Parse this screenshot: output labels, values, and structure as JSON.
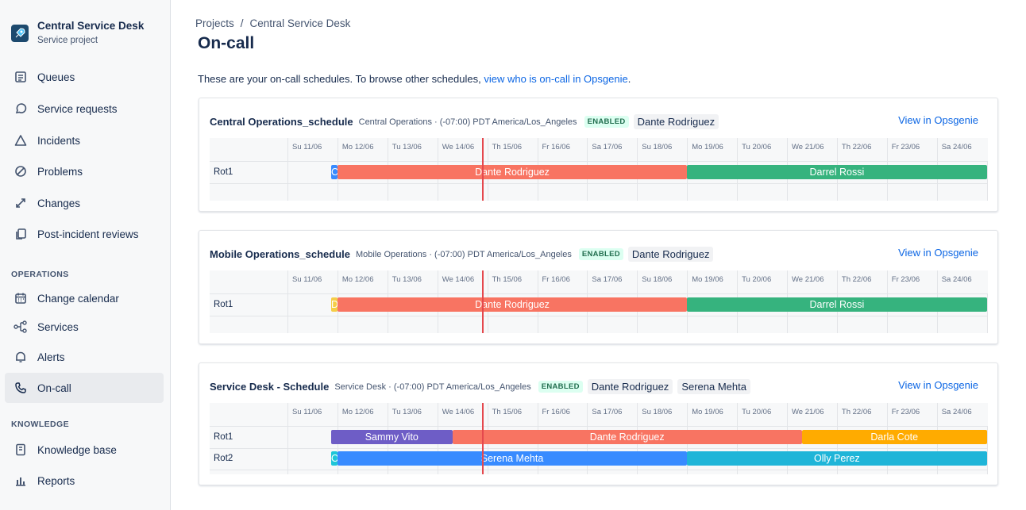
{
  "sidebar": {
    "project_name": "Central Service Desk",
    "project_type": "Service project",
    "items": [
      {
        "label": "Queues"
      },
      {
        "label": "Service requests"
      },
      {
        "label": "Incidents"
      },
      {
        "label": "Problems"
      },
      {
        "label": "Changes"
      },
      {
        "label": "Post-incident reviews"
      }
    ],
    "operations_heading": "OPERATIONS",
    "operations_items": [
      {
        "label": "Change calendar"
      },
      {
        "label": "Services"
      },
      {
        "label": "Alerts"
      },
      {
        "label": "On-call"
      }
    ],
    "knowledge_heading": "KNOWLEDGE",
    "knowledge_items": [
      {
        "label": "Knowledge base"
      },
      {
        "label": "Reports"
      }
    ]
  },
  "breadcrumb": {
    "projects": "Projects",
    "separator": "/",
    "current": "Central Service Desk"
  },
  "page_title": "On-call",
  "intro": {
    "text": "These are your on-call schedules. To browse other schedules, ",
    "link": "view who is on-call in Opsgenie",
    "end": "."
  },
  "days": [
    "Su 11/06",
    "Mo 12/06",
    "Tu 13/06",
    "We 14/06",
    "Th 15/06",
    "Fr 16/06",
    "Sa 17/06",
    "Su 18/06",
    "Mo 19/06",
    "Tu 20/06",
    "We 21/06",
    "Th 22/06",
    "Fr 23/06",
    "Sa 24/06"
  ],
  "schedules": [
    {
      "name": "Central Operations_schedule",
      "meta": "Central Operations · (-07:00) PDT America/Los_Angeles",
      "status": "ENABLED",
      "on_call": [
        "Dante Rodriguez"
      ],
      "view_link": "View in Opsgenie",
      "rotations": [
        {
          "label": "Rot1",
          "shifts": [
            {
              "name": "C",
              "start": 0.875,
              "end": 1.0,
              "color": "#388bff"
            },
            {
              "name": "Dante Rodriguez",
              "start": 1.0,
              "end": 8.0,
              "color": "#f87462"
            },
            {
              "name": "Darrel Rossi",
              "start": 8.0,
              "end": 14.0,
              "color": "#36b37e"
            }
          ]
        }
      ]
    },
    {
      "name": "Mobile Operations_schedule",
      "meta": "Mobile Operations · (-07:00) PDT America/Los_Angeles",
      "status": "ENABLED",
      "on_call": [
        "Dante Rodriguez"
      ],
      "view_link": "View in Opsgenie",
      "rotations": [
        {
          "label": "Rot1",
          "shifts": [
            {
              "name": "D",
              "start": 0.875,
              "end": 1.0,
              "color": "#f5cd47"
            },
            {
              "name": "Dante Rodriguez",
              "start": 1.0,
              "end": 8.0,
              "color": "#f87462"
            },
            {
              "name": "Darrel Rossi",
              "start": 8.0,
              "end": 14.0,
              "color": "#36b37e"
            }
          ]
        }
      ]
    },
    {
      "name": "Service Desk - Schedule",
      "meta": "Service Desk · (-07:00) PDT America/Los_Angeles",
      "status": "ENABLED",
      "on_call": [
        "Dante Rodriguez",
        "Serena Mehta"
      ],
      "view_link": "View in Opsgenie",
      "rotations": [
        {
          "label": "Rot1",
          "shifts": [
            {
              "name": "Sammy Vito",
              "start": 0.875,
              "end": 3.3,
              "color": "#6e5dc6"
            },
            {
              "name": "Dante Rodriguez",
              "start": 3.3,
              "end": 10.3,
              "color": "#f87462"
            },
            {
              "name": "Darla Cote",
              "start": 10.3,
              "end": 14.0,
              "color": "#ffab00"
            }
          ]
        },
        {
          "label": "Rot2",
          "shifts": [
            {
              "name": "O",
              "start": 0.875,
              "end": 1.0,
              "color": "#1fc6d8"
            },
            {
              "name": "Serena Mehta",
              "start": 1.0,
              "end": 8.0,
              "color": "#388bff"
            },
            {
              "name": "Olly Perez",
              "start": 8.0,
              "end": 14.0,
              "color": "#1fb5d8"
            }
          ]
        }
      ]
    }
  ],
  "now_position_days": 3.9,
  "icons": {
    "queues": "queue-icon",
    "requests": "speech-bubble-icon",
    "incidents": "triangle-warning-icon",
    "problems": "no-entry-icon",
    "changes": "arrows-icon",
    "reviews": "copy-document-icon",
    "calendar": "calendar-icon",
    "services": "service-graph-icon",
    "alerts": "bell-icon",
    "oncall": "phone-icon",
    "knowledge": "book-icon",
    "reports": "bar-chart-icon"
  }
}
